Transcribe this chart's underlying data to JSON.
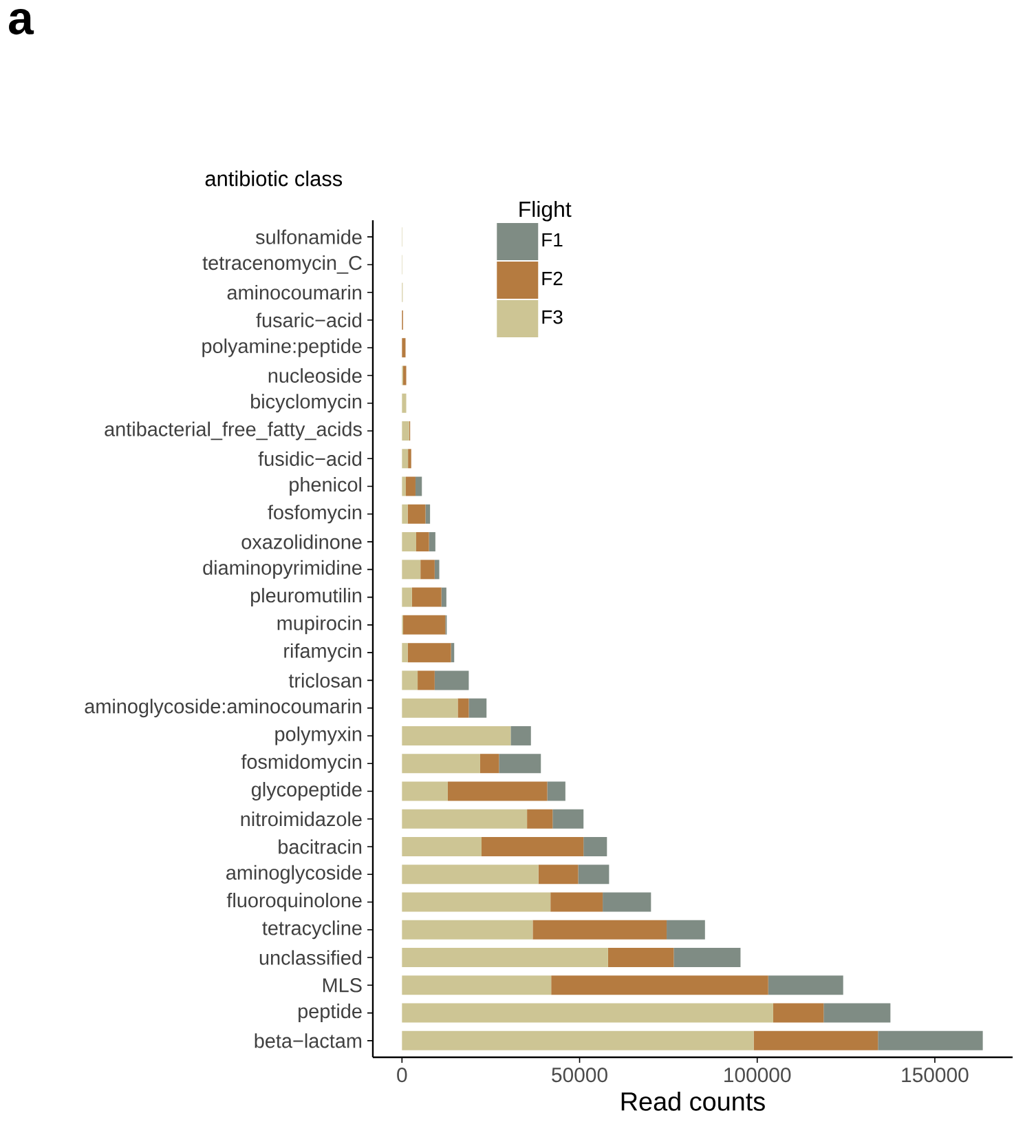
{
  "chart_data": {
    "type": "bar",
    "orientation": "horizontal",
    "stacked": true,
    "annotations": [
      "a"
    ],
    "xlabel": "Read counts",
    "ylabel": "antibiotic class",
    "legend_title": "Flight",
    "categories": [
      "sulfonamide",
      "tetracenomycin_C",
      "aminocoumarin",
      "fusaric−acid",
      "polyamine:peptide",
      "nucleoside",
      "bicyclomycin",
      "antibacterial_free_fatty_acids",
      "fusidic−acid",
      "phenicol",
      "fosfomycin",
      "oxazolidinone",
      "diaminopyrimidine",
      "pleuromutilin",
      "mupirocin",
      "rifamycin",
      "triclosan",
      "aminoglycoside:aminocoumarin",
      "polymyxin",
      "fosmidomycin",
      "glycopeptide",
      "nitroimidazole",
      "bacitracin",
      "aminoglycoside",
      "fluoroquinolone",
      "tetracycline",
      "unclassified",
      "MLS",
      "peptide",
      "beta−lactam"
    ],
    "series": [
      {
        "name": "F3",
        "color": "#cdc594",
        "values": [
          100,
          100,
          200,
          0,
          0,
          300,
          1200,
          2000,
          1700,
          1100,
          1600,
          4000,
          5200,
          2800,
          300,
          1600,
          4400,
          15700,
          30600,
          22000,
          12900,
          35200,
          22400,
          38400,
          41800,
          36800,
          58000,
          42000,
          104500,
          99000
        ]
      },
      {
        "name": "F2",
        "color": "#b57b40",
        "values": [
          0,
          0,
          0,
          300,
          1000,
          900,
          0,
          300,
          900,
          2700,
          5000,
          3600,
          4000,
          8300,
          11900,
          12200,
          4800,
          3100,
          0,
          5300,
          28000,
          7200,
          28700,
          11200,
          14700,
          37700,
          18500,
          61100,
          14200,
          35000
        ]
      },
      {
        "name": "F1",
        "color": "#7f8c84",
        "values": [
          0,
          0,
          0,
          0,
          0,
          0,
          0,
          0,
          0,
          1800,
          1300,
          1800,
          1300,
          1400,
          400,
          900,
          9600,
          5000,
          5700,
          11800,
          5100,
          8700,
          6600,
          8700,
          13600,
          10800,
          18800,
          21100,
          18800,
          29500
        ]
      }
    ],
    "xlim": [
      -8200,
      171900
    ],
    "xticks": [
      0,
      50000,
      100000,
      150000
    ],
    "legend": "top",
    "grid": false
  }
}
